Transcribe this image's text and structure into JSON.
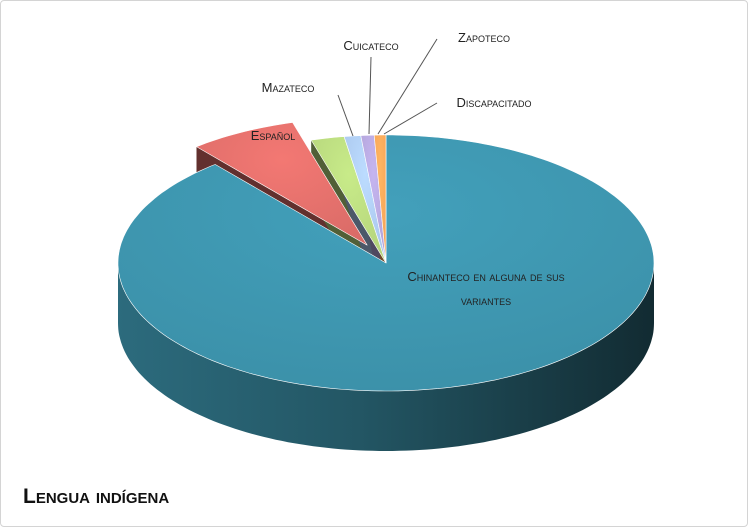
{
  "chart_data": {
    "type": "pie",
    "title": "Lengua indígena",
    "categories": [
      "Chinanteco en alguna de sus variantes",
      "Español",
      "Mazateco",
      "Cuicateco",
      "Zapoteco",
      "Discapacitado"
    ],
    "values": [
      89,
      6.5,
      2,
      1,
      0.8,
      0.7
    ],
    "colors": [
      "#3b8fa7",
      "#d96b67",
      "#b3d27a",
      "#a8c4ea",
      "#b0a2d6",
      "#f4a257"
    ],
    "exploded": [
      false,
      true,
      false,
      false,
      false,
      false
    ],
    "three_d": true
  }
}
